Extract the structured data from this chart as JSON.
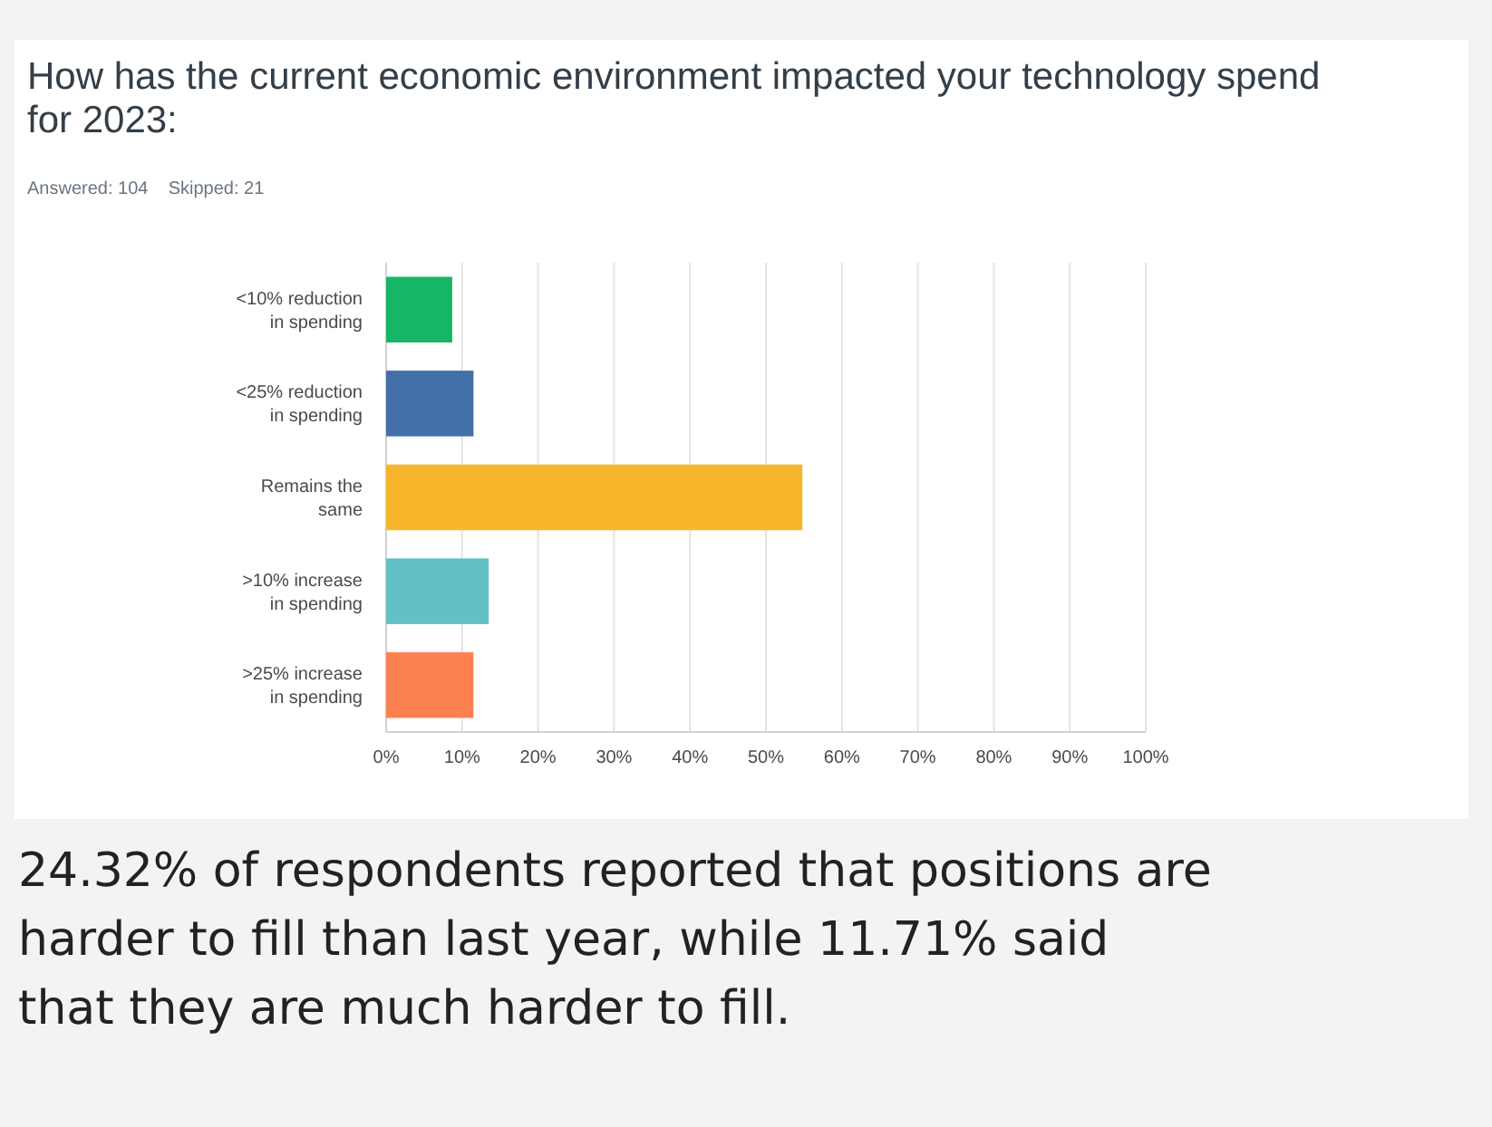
{
  "chart_data": {
    "type": "bar",
    "orientation": "horizontal",
    "title": "How has the current economic environment impacted your technology spend for 2023:",
    "subtitle": "Answered: 104    Skipped: 21",
    "categories": [
      "<10% reduction in spending",
      "<25% reduction in spending",
      "Remains the same",
      ">10% increase in spending",
      ">25% increase in spending"
    ],
    "values": [
      8.7,
      11.5,
      54.8,
      13.5,
      11.5
    ],
    "colors": [
      "#17b566",
      "#4470a9",
      "#f7b52c",
      "#62c1c6",
      "#fd8150"
    ],
    "xlim": [
      0,
      100
    ],
    "xticks": [
      {
        "value": 0,
        "label": "0%"
      },
      {
        "value": 10,
        "label": "10%"
      },
      {
        "value": 20,
        "label": "20%"
      },
      {
        "value": 30,
        "label": "30%"
      },
      {
        "value": 40,
        "label": "40%"
      },
      {
        "value": 50,
        "label": "50%"
      },
      {
        "value": 60,
        "label": "60%"
      },
      {
        "value": 70,
        "label": "70%"
      },
      {
        "value": 80,
        "label": "80%"
      },
      {
        "value": 90,
        "label": "90%"
      },
      {
        "value": 100,
        "label": "100%"
      }
    ],
    "grid": "x",
    "annotations": [
      "24.32% of respondents reported that positions are harder to fill than last year, while 11.71% said that they are much harder to fill."
    ]
  }
}
